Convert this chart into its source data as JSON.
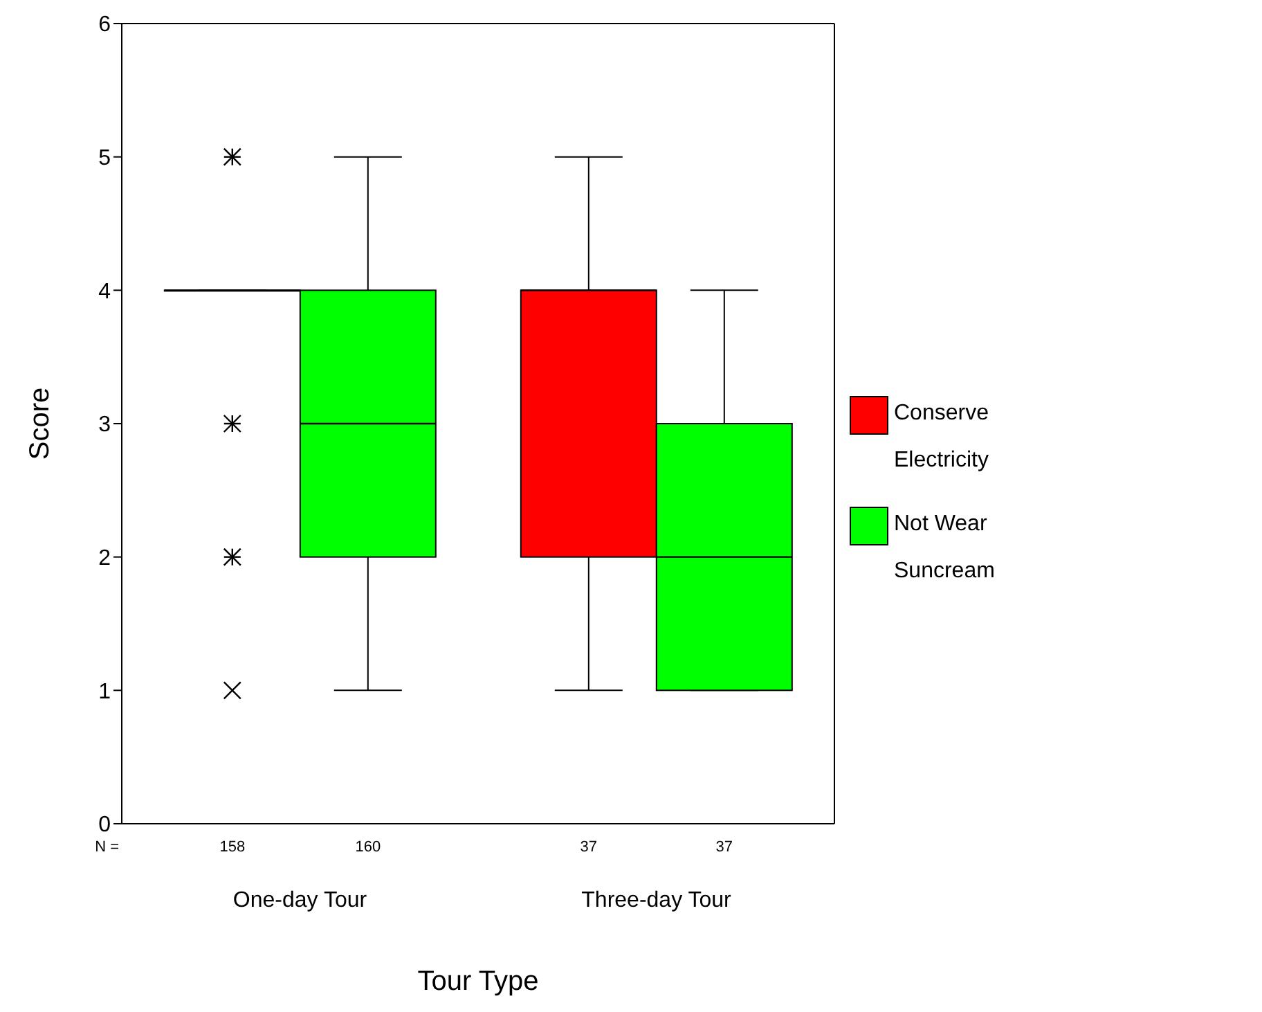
{
  "chart_data": {
    "type": "box",
    "xlabel": "Tour Type",
    "ylabel": "Score",
    "categories": [
      "One-day Tour",
      "Three-day Tour"
    ],
    "series": [
      {
        "name": "Conserve Electricity",
        "color": "#ff0000",
        "boxes": [
          {
            "low": 4,
            "q1": 4,
            "median": 4,
            "q3": 4,
            "high": 4,
            "outliers": [
              5,
              3,
              2,
              1
            ]
          },
          {
            "low": 1,
            "q1": 2,
            "median": 4,
            "q3": 4,
            "high": 5
          }
        ]
      },
      {
        "name": "Not Wear Suncream",
        "color": "#00ff00",
        "boxes": [
          {
            "low": 1,
            "q1": 2,
            "median": 3,
            "q3": 4,
            "high": 5
          },
          {
            "low": 1,
            "q1": 1,
            "median": 2,
            "q3": 3,
            "high": 4
          }
        ]
      }
    ],
    "ylim": [
      0,
      6
    ],
    "yticks": [
      0,
      1,
      2,
      3,
      4,
      5,
      6
    ],
    "legend": "right",
    "annotations": [
      "N =",
      "158",
      "160",
      "37",
      "37"
    ]
  }
}
